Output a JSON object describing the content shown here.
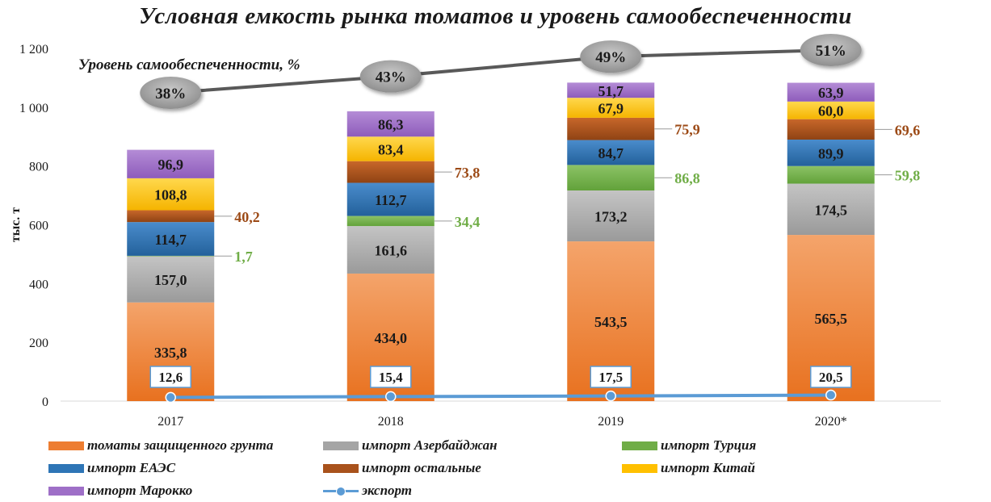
{
  "title": "Условная емкость рынка томатов и уровень самообеспеченности",
  "chart_data": {
    "type": "bar",
    "stacked": true,
    "categories": [
      "2017",
      "2018",
      "2019",
      "2020*"
    ],
    "ylabel": "тыс. т",
    "ylim": [
      0,
      1200
    ],
    "yticks": [
      {
        "value": 0,
        "label": "0"
      },
      {
        "value": 200,
        "label": "200"
      },
      {
        "value": 400,
        "label": "400"
      },
      {
        "value": 600,
        "label": "600"
      },
      {
        "value": 800,
        "label": "800"
      },
      {
        "value": 1000,
        "label": "1 000"
      },
      {
        "value": 1200,
        "label": "1 200"
      }
    ],
    "series": [
      {
        "name": "томаты защищенного грунта",
        "color": "#ed7d31",
        "label_color": "#1a1a1a",
        "values": [
          335.8,
          434.0,
          543.5,
          565.5
        ],
        "labels": [
          "335,8",
          "434,0",
          "543,5",
          "565,5"
        ],
        "label_outside": false
      },
      {
        "name": "импорт Азербайджан",
        "color": "#a5a5a5",
        "label_color": "#1a1a1a",
        "values": [
          157.0,
          161.6,
          173.2,
          174.5
        ],
        "labels": [
          "157,0",
          "161,6",
          "173,2",
          "174,5"
        ],
        "label_outside": false
      },
      {
        "name": "импорт Турция",
        "color": "#70ad47",
        "label_color": "#70ad47",
        "values": [
          1.7,
          34.4,
          86.8,
          59.8
        ],
        "labels": [
          "1,7",
          "34,4",
          "86,8",
          "59,8"
        ],
        "label_outside": true
      },
      {
        "name": "импорт ЕАЭС",
        "color": "#2e75b6",
        "label_color": "#1a1a1a",
        "values": [
          114.7,
          112.7,
          84.7,
          89.9
        ],
        "labels": [
          "114,7",
          "112,7",
          "84,7",
          "89,9"
        ],
        "label_outside": false
      },
      {
        "name": "импорт остальные",
        "color": "#a9521c",
        "label_color": "#9c4a16",
        "values": [
          40.2,
          73.8,
          75.9,
          69.6
        ],
        "labels": [
          "40,2",
          "73,8",
          "75,9",
          "69,6"
        ],
        "label_outside": true
      },
      {
        "name": "импорт Китай",
        "color": "#ffc000",
        "label_color": "#1a1a1a",
        "values": [
          108.8,
          83.4,
          67.9,
          60.0
        ],
        "labels": [
          "108,8",
          "83,4",
          "67,9",
          "60,0"
        ],
        "label_outside": false
      },
      {
        "name": "импорт Марокко",
        "color": "#9e6fc7",
        "label_color": "#1a1a1a",
        "values": [
          96.9,
          86.3,
          51.7,
          63.9
        ],
        "labels": [
          "96,9",
          "86,3",
          "51,7",
          "63,9"
        ],
        "label_outside": false
      }
    ],
    "export": {
      "name": "экспорт",
      "color": "#5b9bd5",
      "values": [
        12.6,
        15.4,
        17.5,
        20.5
      ],
      "labels": [
        "12,6",
        "15,4",
        "17,5",
        "20,5"
      ]
    },
    "self_sufficiency": {
      "name": "Уровень самообеспеченности, %",
      "color": "#595959",
      "values": [
        38,
        43,
        49,
        51
      ],
      "labels": [
        "38%",
        "43%",
        "49%",
        "51%"
      ]
    },
    "grid": false,
    "legend_position": "bottom"
  },
  "legend": {
    "items": [
      {
        "label": "томаты защищенного грунта",
        "color": "#ed7d31",
        "kind": "bar"
      },
      {
        "label": "импорт Азербайджан",
        "color": "#a5a5a5",
        "kind": "bar"
      },
      {
        "label": "импорт Турция",
        "color": "#70ad47",
        "kind": "bar"
      },
      {
        "label": "импорт ЕАЭС",
        "color": "#2e75b6",
        "kind": "bar"
      },
      {
        "label": "импорт остальные",
        "color": "#a9521c",
        "kind": "bar"
      },
      {
        "label": "импорт Китай",
        "color": "#ffc000",
        "kind": "bar"
      },
      {
        "label": "импорт Марокко",
        "color": "#9e6fc7",
        "kind": "bar"
      },
      {
        "label": "экспорт",
        "color": "#5b9bd5",
        "kind": "line"
      }
    ]
  }
}
